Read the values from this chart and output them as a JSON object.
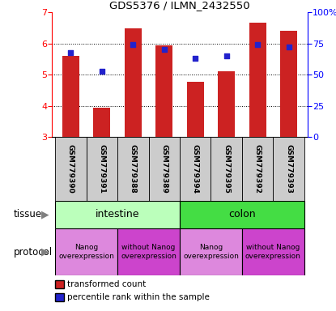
{
  "title": "GDS5376 / ILMN_2432550",
  "samples": [
    "GSM779390",
    "GSM779391",
    "GSM779388",
    "GSM779389",
    "GSM779394",
    "GSM779395",
    "GSM779392",
    "GSM779393"
  ],
  "bar_values": [
    5.6,
    3.93,
    6.5,
    5.95,
    4.77,
    5.1,
    6.68,
    6.4
  ],
  "percentile_pct": [
    68,
    53,
    74,
    70,
    63,
    65,
    74,
    72
  ],
  "ylim": [
    3,
    7
  ],
  "yticks": [
    3,
    4,
    5,
    6,
    7
  ],
  "right_yticks": [
    0,
    25,
    50,
    75,
    100
  ],
  "right_yticklabels": [
    "0",
    "25",
    "50",
    "75",
    "100%"
  ],
  "bar_color": "#cc2222",
  "dot_color": "#2222cc",
  "tissue_intestine_color": "#bbffbb",
  "tissue_colon_color": "#44dd44",
  "protocol_nanog_color": "#dd88dd",
  "protocol_nonanog_color": "#cc44cc",
  "tissue_label_intestine": "intestine",
  "tissue_label_colon": "colon",
  "legend_bar_label": "transformed count",
  "legend_dot_label": "percentile rank within the sample",
  "tissue_row_label": "tissue",
  "protocol_row_label": "protocol"
}
